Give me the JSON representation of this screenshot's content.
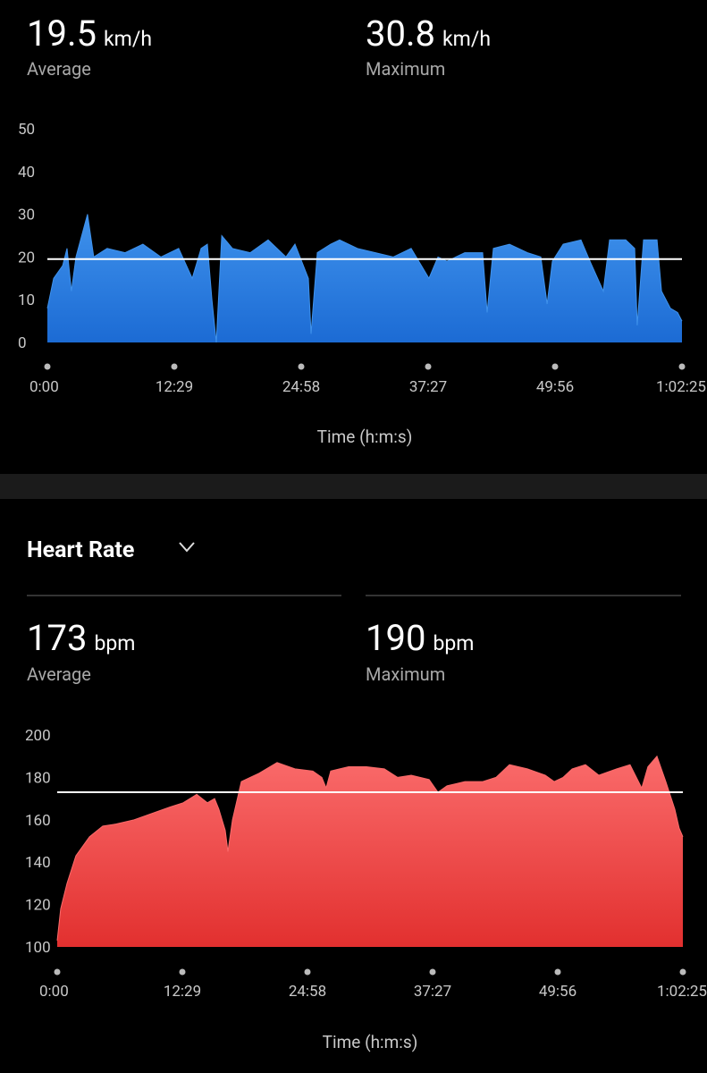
{
  "speed": {
    "average": {
      "value": 19.5,
      "unit": "km/h",
      "label": "Average"
    },
    "maximum": {
      "value": 30.8,
      "unit": "km/h",
      "label": "Maximum"
    }
  },
  "heart_rate": {
    "title": "Heart Rate",
    "average": {
      "value": 173,
      "unit": "bpm",
      "label": "Average"
    },
    "maximum": {
      "value": 190,
      "unit": "bpm",
      "label": "Maximum"
    }
  },
  "chart_data": [
    {
      "type": "area",
      "x_label": "Time (h:m:s)",
      "colors": [
        "#3f92ec",
        "#1c6bd4"
      ],
      "reference_color": "#ffffff",
      "xlim": [
        0,
        3745
      ],
      "ylim": [
        0,
        50
      ],
      "yticks": [
        0,
        10,
        20,
        30,
        40,
        50
      ],
      "xticks": [
        {
          "value": 0,
          "label": "0:00"
        },
        {
          "value": 749,
          "label": "12:29"
        },
        {
          "value": 1498,
          "label": "24:58"
        },
        {
          "value": 2247,
          "label": "37:27"
        },
        {
          "value": 2996,
          "label": "49:56"
        },
        {
          "value": 3745,
          "label": "1:02:25"
        }
      ],
      "x": [
        0,
        37,
        90,
        116,
        142,
        169,
        237,
        274,
        353,
        459,
        564,
        670,
        775,
        855,
        907,
        944,
        971,
        997,
        1029,
        1092,
        1197,
        1303,
        1408,
        1461,
        1540,
        1556,
        1593,
        1672,
        1725,
        1830,
        1936,
        2041,
        2147,
        2252,
        2305,
        2358,
        2463,
        2569,
        2595,
        2632,
        2727,
        2833,
        2912,
        2949,
        2980,
        3044,
        3149,
        3202,
        3281,
        3318,
        3413,
        3466,
        3481,
        3518,
        3598,
        3624,
        3677,
        3719,
        3745
      ],
      "values": [
        8,
        15,
        18,
        22,
        12,
        20,
        30,
        20,
        22,
        21,
        23,
        20,
        22,
        15,
        22,
        23,
        10,
        0,
        25,
        22,
        21,
        24,
        20,
        23,
        15,
        2,
        21,
        23,
        24,
        22,
        21,
        20,
        22,
        15,
        20,
        19,
        21,
        21,
        7,
        22,
        23,
        21,
        20,
        9,
        19,
        23,
        24,
        19,
        12,
        24,
        24,
        22,
        4,
        24,
        24,
        12,
        8,
        7,
        5
      ]
    },
    {
      "type": "area",
      "x_label": "Time (h:m:s)",
      "colors": [
        "#fa6b6b",
        "#e2302f"
      ],
      "reference_color": "#ffffff",
      "xlim": [
        0,
        3745
      ],
      "ylim": [
        100,
        200
      ],
      "yticks": [
        100,
        120,
        140,
        160,
        180,
        200
      ],
      "xticks": [
        {
          "value": 0,
          "label": "0:00"
        },
        {
          "value": 749,
          "label": "12:29"
        },
        {
          "value": 1498,
          "label": "24:58"
        },
        {
          "value": 2247,
          "label": "37:27"
        },
        {
          "value": 2996,
          "label": "49:56"
        },
        {
          "value": 3745,
          "label": "1:02:25"
        }
      ],
      "x": [
        0,
        21,
        59,
        112,
        193,
        273,
        353,
        460,
        567,
        674,
        754,
        835,
        899,
        942,
        968,
        1006,
        1022,
        1049,
        1102,
        1209,
        1316,
        1423,
        1530,
        1584,
        1610,
        1637,
        1744,
        1851,
        1958,
        2038,
        2119,
        2226,
        2279,
        2333,
        2440,
        2547,
        2627,
        2707,
        2814,
        2921,
        2975,
        3028,
        3082,
        3162,
        3242,
        3349,
        3429,
        3499,
        3536,
        3590,
        3643,
        3697,
        3723,
        3745
      ],
      "values": [
        103,
        118,
        130,
        143,
        152,
        157,
        158,
        160,
        163,
        166,
        168,
        172,
        168,
        170,
        165,
        155,
        145,
        160,
        178,
        182,
        187,
        184,
        183,
        180,
        175,
        183,
        185,
        185,
        184,
        180,
        181,
        179,
        173,
        176,
        178,
        178,
        180,
        186,
        184,
        181,
        178,
        180,
        184,
        186,
        181,
        184,
        186,
        175,
        185,
        190,
        178,
        165,
        156,
        152
      ]
    }
  ]
}
